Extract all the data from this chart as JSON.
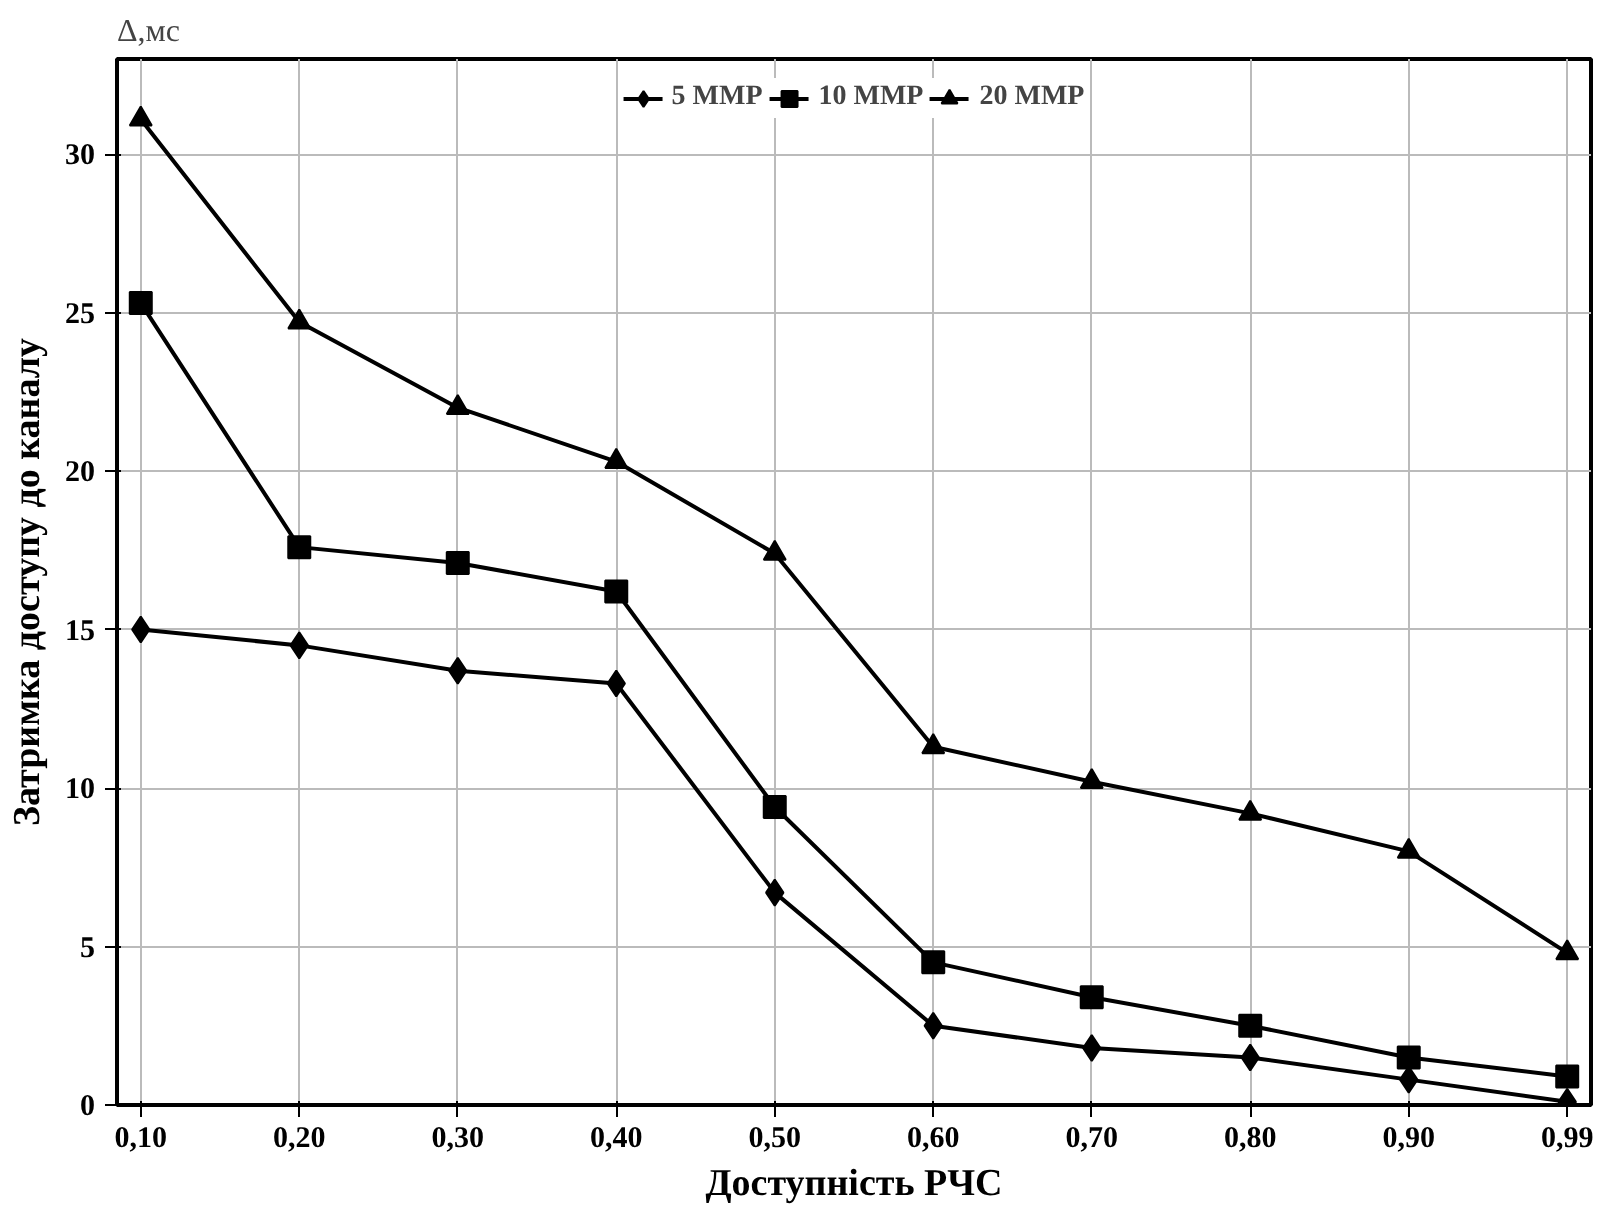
{
  "chart_data": {
    "type": "line",
    "xlabel": "Доступність РЧС",
    "ylabel": "Затримка доступу до каналу",
    "annotations": [
      "Δ,мс"
    ],
    "categories": [
      "0,10",
      "0,20",
      "0,30",
      "0,40",
      "0,50",
      "0,60",
      "0,70",
      "0,80",
      "0,90",
      "0,99"
    ],
    "series": [
      {
        "name": "5 MMP",
        "color": "#000000",
        "marker": "diamond",
        "values": [
          15.0,
          14.5,
          13.7,
          13.3,
          6.7,
          2.5,
          1.8,
          1.5,
          0.8,
          0.1
        ]
      },
      {
        "name": "10 MMP",
        "color": "#000000",
        "marker": "square",
        "values": [
          25.3,
          17.6,
          17.1,
          16.2,
          9.4,
          4.5,
          3.4,
          2.5,
          1.5,
          0.9
        ]
      },
      {
        "name": "20 MMP",
        "color": "#000000",
        "marker": "triangle",
        "values": [
          31.1,
          24.7,
          22.0,
          20.3,
          17.4,
          11.3,
          10.2,
          9.2,
          8.0,
          4.8
        ]
      }
    ],
    "ylim": [
      0,
      33
    ],
    "yticks": [
      0,
      5,
      10,
      15,
      20,
      25,
      30
    ],
    "grid": true,
    "legend": "top",
    "line_style": "solid"
  }
}
